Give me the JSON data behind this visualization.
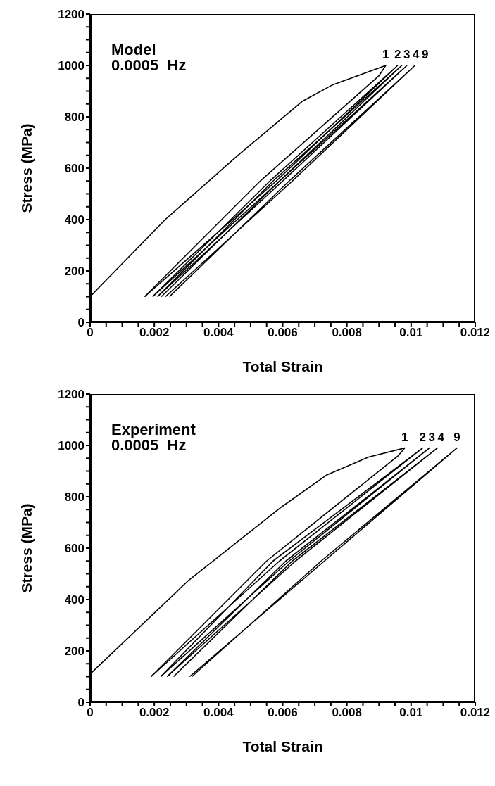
{
  "chart_data": [
    {
      "type": "line",
      "title": "Model",
      "subtitle": "0.0005  Hz",
      "xlabel": "Total Strain",
      "ylabel": "Stress (MPa)",
      "xlim": [
        0,
        0.012
      ],
      "ylim": [
        0,
        1200
      ],
      "xticks": [
        0,
        {
          "value": 0.0005,
          "label": null
        },
        {
          "value": 0.001,
          "label": null
        },
        {
          "value": 0.0015,
          "label": null
        },
        0.002,
        {
          "value": 0.0025,
          "label": null
        },
        {
          "value": 0.003,
          "label": null
        },
        {
          "value": 0.0035,
          "label": null
        },
        0.004,
        {
          "value": 0.0045,
          "label": null
        },
        {
          "value": 0.005,
          "label": null
        },
        {
          "value": 0.0055,
          "label": null
        },
        0.006,
        {
          "value": 0.0065,
          "label": null
        },
        {
          "value": 0.007,
          "label": null
        },
        {
          "value": 0.0075,
          "label": null
        },
        0.008,
        {
          "value": 0.0085,
          "label": null
        },
        {
          "value": 0.009,
          "label": null
        },
        {
          "value": 0.0095,
          "label": null
        },
        0.01,
        {
          "value": 0.0105,
          "label": null
        },
        {
          "value": 0.011,
          "label": null
        },
        {
          "value": 0.0115,
          "label": null
        },
        0.012
      ],
      "yticks": [
        0,
        {
          "value": 50,
          "label": null
        },
        {
          "value": 100,
          "label": null
        },
        {
          "value": 150,
          "label": null
        },
        200,
        {
          "value": 250,
          "label": null
        },
        {
          "value": 300,
          "label": null
        },
        {
          "value": 350,
          "label": null
        },
        400,
        {
          "value": 450,
          "label": null
        },
        {
          "value": 500,
          "label": null
        },
        {
          "value": 550,
          "label": null
        },
        600,
        {
          "value": 650,
          "label": null
        },
        {
          "value": 700,
          "label": null
        },
        {
          "value": 750,
          "label": null
        },
        800,
        {
          "value": 850,
          "label": null
        },
        {
          "value": 900,
          "label": null
        },
        {
          "value": 950,
          "label": null
        },
        1000,
        {
          "value": 1050,
          "label": null
        },
        {
          "value": 1100,
          "label": null
        },
        {
          "value": 1150,
          "label": null
        },
        1200
      ],
      "legend": false,
      "marker": "none",
      "line_style": "solid",
      "series": [
        {
          "name": "1",
          "color": "#000000",
          "x": [
            0,
            0.00234,
            0.00457,
            0.00662,
            0.00753,
            0.00921,
            0.009,
            0.0053,
            0.0017
          ],
          "values": [
            100,
            400,
            646,
            861,
            923,
            1000,
            960,
            550,
            100
          ]
        },
        {
          "name": "2",
          "color": "#000000",
          "x": [
            0.0017,
            0.0058,
            0.00958,
            0.0056,
            0.00195
          ],
          "values": [
            100,
            550,
            1000,
            550,
            100
          ]
        },
        {
          "name": "3",
          "color": "#000000",
          "x": [
            0.00195,
            0.0059,
            0.00971,
            0.0057,
            0.0021
          ],
          "values": [
            100,
            550,
            1000,
            550,
            100
          ]
        },
        {
          "name": "4",
          "color": "#000000",
          "x": [
            0.0021,
            0.006,
            0.00987,
            0.0059,
            0.00222
          ],
          "values": [
            100,
            550,
            1000,
            550,
            100
          ]
        },
        {
          "name": "9",
          "color": "#000000",
          "x": [
            0.00235,
            0.0063,
            0.01012,
            0.0062,
            0.00247
          ],
          "values": [
            100,
            550,
            1000,
            550,
            100
          ]
        }
      ]
    },
    {
      "type": "line",
      "title": "Experiment",
      "subtitle": "0.0005  Hz",
      "xlabel": "Total Strain",
      "ylabel": "Stress (MPa)",
      "xlim": [
        0,
        0.012
      ],
      "ylim": [
        0,
        1200
      ],
      "xticks": [
        0,
        {
          "value": 0.0005,
          "label": null
        },
        {
          "value": 0.001,
          "label": null
        },
        {
          "value": 0.0015,
          "label": null
        },
        0.002,
        {
          "value": 0.0025,
          "label": null
        },
        {
          "value": 0.003,
          "label": null
        },
        {
          "value": 0.0035,
          "label": null
        },
        0.004,
        {
          "value": 0.0045,
          "label": null
        },
        {
          "value": 0.005,
          "label": null
        },
        {
          "value": 0.0055,
          "label": null
        },
        0.006,
        {
          "value": 0.0065,
          "label": null
        },
        {
          "value": 0.007,
          "label": null
        },
        {
          "value": 0.0075,
          "label": null
        },
        0.008,
        {
          "value": 0.0085,
          "label": null
        },
        {
          "value": 0.009,
          "label": null
        },
        {
          "value": 0.0095,
          "label": null
        },
        0.01,
        {
          "value": 0.0105,
          "label": null
        },
        {
          "value": 0.011,
          "label": null
        },
        {
          "value": 0.0115,
          "label": null
        },
        0.012
      ],
      "yticks": [
        0,
        {
          "value": 50,
          "label": null
        },
        {
          "value": 100,
          "label": null
        },
        {
          "value": 150,
          "label": null
        },
        200,
        {
          "value": 250,
          "label": null
        },
        {
          "value": 300,
          "label": null
        },
        {
          "value": 350,
          "label": null
        },
        400,
        {
          "value": 450,
          "label": null
        },
        {
          "value": 500,
          "label": null
        },
        {
          "value": 550,
          "label": null
        },
        600,
        {
          "value": 650,
          "label": null
        },
        {
          "value": 700,
          "label": null
        },
        {
          "value": 750,
          "label": null
        },
        800,
        {
          "value": 850,
          "label": null
        },
        {
          "value": 900,
          "label": null
        },
        {
          "value": 950,
          "label": null
        },
        1000,
        {
          "value": 1050,
          "label": null
        },
        {
          "value": 1100,
          "label": null
        },
        {
          "value": 1150,
          "label": null
        },
        1200
      ],
      "legend": false,
      "marker": "none",
      "line_style": "solid",
      "series": [
        {
          "name": "1",
          "color": "#000000",
          "x": [
            0,
            0.00308,
            0.00597,
            0.00736,
            0.00868,
            0.0098,
            0.0096,
            0.0055,
            0.0019
          ],
          "values": [
            110,
            476,
            761,
            884,
            955,
            990,
            960,
            550,
            100
          ]
        },
        {
          "name": "2",
          "color": "#000000",
          "x": [
            0.0019,
            0.0059,
            0.01036,
            0.0057,
            0.0022
          ],
          "values": [
            100,
            550,
            990,
            550,
            100
          ]
        },
        {
          "name": "3",
          "color": "#000000",
          "x": [
            0.0022,
            0.0062,
            0.01057,
            0.0061,
            0.0024
          ],
          "values": [
            100,
            550,
            990,
            550,
            100
          ]
        },
        {
          "name": "4",
          "color": "#000000",
          "x": [
            0.0024,
            0.0064,
            0.01082,
            0.0063,
            0.0026
          ],
          "values": [
            100,
            550,
            990,
            550,
            100
          ]
        },
        {
          "name": "9",
          "color": "#000000",
          "x": [
            0.0031,
            0.0073,
            0.01143,
            0.0072,
            0.00317
          ],
          "values": [
            100,
            550,
            990,
            550,
            100
          ]
        }
      ]
    }
  ]
}
